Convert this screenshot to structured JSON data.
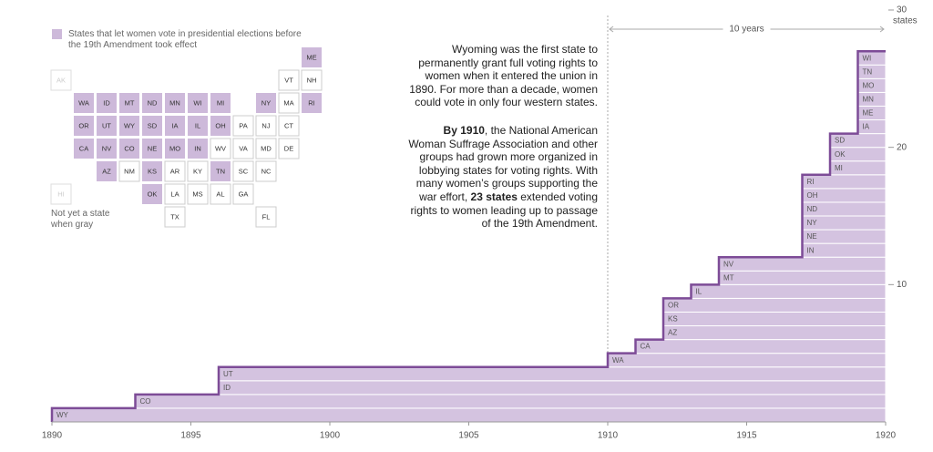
{
  "chart_data": {
    "type": "step",
    "xlim": [
      1890,
      1920
    ],
    "xticks": [
      1890,
      1895,
      1900,
      1905,
      1910,
      1915,
      1920
    ],
    "ylim": [
      0,
      30
    ],
    "yticks": [
      10,
      20,
      30
    ],
    "ylabel": "states",
    "color": "#d4c3e0",
    "line_color": "#7d4c97",
    "states": [
      {
        "label": "WY",
        "year": 1890
      },
      {
        "label": "CO",
        "year": 1893
      },
      {
        "label": "ID",
        "year": 1896
      },
      {
        "label": "UT",
        "year": 1896
      },
      {
        "label": "WA",
        "year": 1910
      },
      {
        "label": "CA",
        "year": 1911
      },
      {
        "label": "AZ",
        "year": 1912
      },
      {
        "label": "KS",
        "year": 1912
      },
      {
        "label": "OR",
        "year": 1912
      },
      {
        "label": "IL",
        "year": 1913
      },
      {
        "label": "MT",
        "year": 1914
      },
      {
        "label": "NV",
        "year": 1914
      },
      {
        "label": "IN",
        "year": 1917
      },
      {
        "label": "NE",
        "year": 1917
      },
      {
        "label": "NY",
        "year": 1917
      },
      {
        "label": "ND",
        "year": 1917
      },
      {
        "label": "OH",
        "year": 1917
      },
      {
        "label": "RI",
        "year": 1917
      },
      {
        "label": "MI",
        "year": 1918
      },
      {
        "label": "OK",
        "year": 1918
      },
      {
        "label": "SD",
        "year": 1918
      },
      {
        "label": "IA",
        "year": 1919
      },
      {
        "label": "ME",
        "year": 1919
      },
      {
        "label": "MN",
        "year": 1919
      },
      {
        "label": "MO",
        "year": 1919
      },
      {
        "label": "TN",
        "year": 1919
      },
      {
        "label": "WI",
        "year": 1919
      }
    ],
    "bracket": {
      "label": "10 years",
      "from": 1910,
      "to": 1920
    },
    "annotation": [
      [
        {
          "text": "Wyoming was the first state to permanently grant full voting rights to women when it entered the union in 1890. For more than a decade, women could vote in only four western states."
        }
      ],
      [
        {
          "text": "By 1910",
          "bold": true
        },
        {
          "text": ", the National American Woman Suffrage Association and other groups had grown more organized in lobbying states for voting rights. With many women’s groups supporting the war effort, "
        },
        {
          "text": "23 states",
          "bold": true
        },
        {
          "text": " extended voting rights to women leading up to passage of the 19th Amendment."
        }
      ]
    ]
  },
  "map": {
    "legend": "States that let women vote in presidential elections before the 19th Amendment took effect",
    "gray_note": "Not yet a state when gray",
    "colors": {
      "vote": "#cdb9da",
      "no": "#ffffff",
      "gray": "#ffffff"
    },
    "rows": [
      [
        null,
        null,
        null,
        null,
        null,
        null,
        null,
        null,
        null,
        null,
        null,
        {
          "label": "ME",
          "status": "vote"
        }
      ],
      [
        {
          "label": "AK",
          "status": "gray"
        },
        null,
        null,
        null,
        null,
        null,
        null,
        null,
        null,
        null,
        {
          "label": "VT",
          "status": "no"
        },
        {
          "label": "NH",
          "status": "no"
        }
      ],
      [
        null,
        {
          "label": "WA",
          "status": "vote"
        },
        {
          "label": "ID",
          "status": "vote"
        },
        {
          "label": "MT",
          "status": "vote"
        },
        {
          "label": "ND",
          "status": "vote"
        },
        {
          "label": "MN",
          "status": "vote"
        },
        {
          "label": "WI",
          "status": "vote"
        },
        {
          "label": "MI",
          "status": "vote"
        },
        null,
        {
          "label": "NY",
          "status": "vote"
        },
        {
          "label": "MA",
          "status": "no"
        },
        {
          "label": "RI",
          "status": "vote"
        }
      ],
      [
        null,
        {
          "label": "OR",
          "status": "vote"
        },
        {
          "label": "UT",
          "status": "vote"
        },
        {
          "label": "WY",
          "status": "vote"
        },
        {
          "label": "SD",
          "status": "vote"
        },
        {
          "label": "IA",
          "status": "vote"
        },
        {
          "label": "IL",
          "status": "vote"
        },
        {
          "label": "OH",
          "status": "vote"
        },
        {
          "label": "PA",
          "status": "no"
        },
        {
          "label": "NJ",
          "status": "no"
        },
        {
          "label": "CT",
          "status": "no"
        }
      ],
      [
        null,
        {
          "label": "CA",
          "status": "vote"
        },
        {
          "label": "NV",
          "status": "vote"
        },
        {
          "label": "CO",
          "status": "vote"
        },
        {
          "label": "NE",
          "status": "vote"
        },
        {
          "label": "MO",
          "status": "vote"
        },
        {
          "label": "IN",
          "status": "vote"
        },
        {
          "label": "WV",
          "status": "no"
        },
        {
          "label": "VA",
          "status": "no"
        },
        {
          "label": "MD",
          "status": "no"
        },
        {
          "label": "DE",
          "status": "no"
        }
      ],
      [
        null,
        null,
        {
          "label": "AZ",
          "status": "vote"
        },
        {
          "label": "NM",
          "status": "no"
        },
        {
          "label": "KS",
          "status": "vote"
        },
        {
          "label": "AR",
          "status": "no"
        },
        {
          "label": "KY",
          "status": "no"
        },
        {
          "label": "TN",
          "status": "vote"
        },
        {
          "label": "SC",
          "status": "no"
        },
        {
          "label": "NC",
          "status": "no"
        }
      ],
      [
        {
          "label": "HI",
          "status": "gray"
        },
        null,
        null,
        null,
        {
          "label": "OK",
          "status": "vote"
        },
        {
          "label": "LA",
          "status": "no"
        },
        {
          "label": "MS",
          "status": "no"
        },
        {
          "label": "AL",
          "status": "no"
        },
        {
          "label": "GA",
          "status": "no"
        }
      ],
      [
        null,
        null,
        null,
        null,
        null,
        {
          "label": "TX",
          "status": "no"
        },
        null,
        null,
        null,
        {
          "label": "FL",
          "status": "no"
        }
      ]
    ]
  }
}
